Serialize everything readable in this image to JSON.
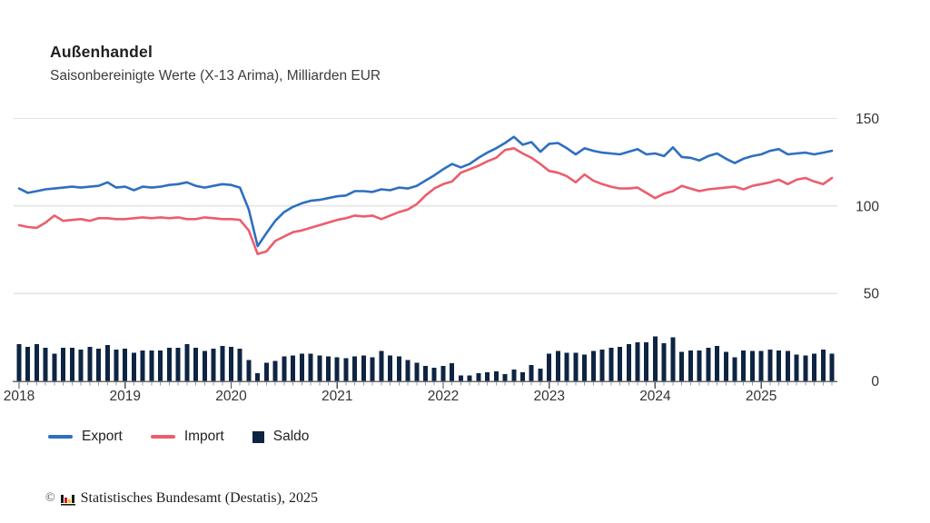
{
  "header": {
    "title": "Außenhandel",
    "subtitle": "Saisonbereinigte Werte (X-13 Arima), Milliarden EUR"
  },
  "legend": {
    "items": [
      {
        "label": "Export",
        "marker": "line",
        "color": "#2e6fc0"
      },
      {
        "label": "Import",
        "marker": "line",
        "color": "#ec5d6c"
      },
      {
        "label": "Saldo",
        "marker": "square",
        "color": "#0e2443"
      }
    ]
  },
  "footer": {
    "copyright": "©",
    "logo_icon": "destatis-bar-chart-logo",
    "source": "Statistisches Bundesamt (Destatis), 2025"
  },
  "chart_data": {
    "type": "line+bar",
    "title": "Außenhandel",
    "subtitle": "Saisonbereinigte Werte (X-13 Arima), Milliarden EUR",
    "unit": "Milliarden EUR",
    "x_start": "2018-01",
    "x_end": "2025-09",
    "months_per_year": 12,
    "x_tick_labels": [
      "2018",
      "2019",
      "2020",
      "2021",
      "2022",
      "2023",
      "2024",
      "2025"
    ],
    "y_ticks": [
      0,
      50,
      100,
      150
    ],
    "ylim": [
      0,
      150
    ],
    "y_axis_side": "right",
    "grid": "horizontal",
    "colors": {
      "export": "#2e6fc0",
      "import": "#ec5d6c",
      "saldo": "#0e2443",
      "gridline": "#e3e3e3",
      "axis": "#6f6f6f",
      "month_tick": "#999999",
      "year_tick": "#555555",
      "tick_label": "#333333"
    },
    "series": [
      {
        "name": "Export",
        "type": "line",
        "color": "#2e6fc0",
        "values": [
          110,
          107.5,
          108.5,
          109.5,
          110,
          110.5,
          111,
          110.5,
          111,
          111.5,
          113.5,
          110.5,
          111,
          109,
          111,
          110.5,
          111,
          112,
          112.5,
          113.5,
          111.5,
          110.5,
          111.5,
          112.5,
          112,
          110.5,
          98,
          77,
          84.5,
          91.5,
          96.5,
          99.5,
          101.5,
          103,
          103.5,
          104.5,
          105.5,
          106,
          108.5,
          108.5,
          108,
          109.5,
          109,
          110.5,
          110,
          111.5,
          114.5,
          117.5,
          121,
          124,
          122,
          124,
          127.5,
          130.5,
          133,
          136,
          139.5,
          135,
          136.5,
          131,
          135.5,
          136,
          133,
          129.5,
          133,
          131.5,
          130.5,
          130,
          129.5,
          131,
          132.5,
          129.5,
          130,
          128.5,
          133.5,
          128,
          127.5,
          126,
          128.5,
          130,
          127,
          124.5,
          127,
          128.5,
          129.5,
          131.5,
          132.5,
          129.5,
          130,
          130.5,
          129.5,
          130.5,
          131.5
        ]
      },
      {
        "name": "Import",
        "type": "line",
        "color": "#ec5d6c",
        "values": [
          89,
          88,
          87.5,
          90.5,
          94.5,
          91.5,
          92,
          92.5,
          91.5,
          93,
          93,
          92.5,
          92.5,
          93,
          93.5,
          93,
          93.5,
          93,
          93.5,
          92.5,
          92.5,
          93.5,
          93,
          92.5,
          92.5,
          92,
          86,
          72.5,
          74,
          80,
          82.5,
          85,
          86,
          87.5,
          89,
          90.5,
          92,
          93,
          94.5,
          94,
          94.5,
          92.5,
          94.5,
          96.5,
          98,
          101,
          106,
          110,
          112.5,
          114,
          119,
          121,
          123,
          125.5,
          127.5,
          132,
          133,
          130,
          127.5,
          124,
          120,
          119,
          117,
          113.5,
          118,
          114.5,
          112.5,
          111,
          110,
          110,
          110.5,
          107.5,
          104.5,
          107,
          108.5,
          111.5,
          110,
          108.5,
          109.5,
          110,
          110.5,
          111,
          109.5,
          111.5,
          112.5,
          113.5,
          115,
          112.5,
          115,
          116,
          114,
          112.5,
          116
        ]
      },
      {
        "name": "Saldo",
        "type": "bar",
        "color": "#0e2443",
        "values": [
          21,
          19.5,
          21,
          19,
          15.5,
          19,
          19,
          18,
          19.5,
          18.5,
          20.5,
          18,
          18.5,
          16,
          17.5,
          17.5,
          17.5,
          19,
          19,
          21,
          19,
          17,
          18.5,
          20,
          19.5,
          18.5,
          12,
          4.5,
          10.5,
          11.5,
          14,
          14.5,
          15.5,
          15.5,
          14.5,
          14,
          13.5,
          13,
          14,
          14.5,
          13.5,
          17,
          14.5,
          14,
          12,
          10.5,
          8.5,
          7.5,
          8.5,
          10,
          3,
          3,
          4.5,
          5,
          5.5,
          4,
          6.5,
          5,
          9,
          7,
          15.5,
          17,
          16,
          16,
          15,
          17,
          18,
          19,
          19.5,
          21,
          22,
          22,
          25.5,
          21.5,
          25,
          16.5,
          17.5,
          17.5,
          19,
          20,
          16.5,
          13.5,
          17.5,
          17,
          17,
          18,
          17.5,
          17,
          15,
          14.5,
          15.5,
          18,
          15.5
        ]
      }
    ]
  }
}
